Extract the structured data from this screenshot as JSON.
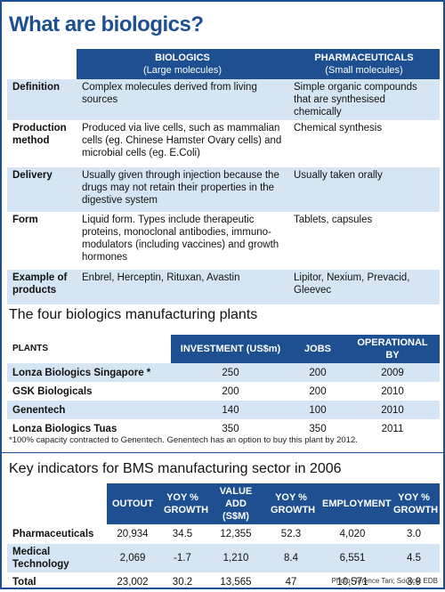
{
  "header": {
    "title": "What are biologics?"
  },
  "comparison": {
    "headers": [
      [
        "BIOLOGICS",
        "(Large molecules)"
      ],
      [
        "PHARMACEUTICALS",
        "(Small molecules)"
      ]
    ],
    "rows": [
      [
        "Definition",
        "Complex molecules derived from living sources",
        "Simple organic compounds that are synthesised chemically"
      ],
      [
        "Production method",
        "Produced via live cells, such as mammalian cells (eg. Chinese Hamster Ovary cells) and microbial cells (eg. E.Coli)",
        "Chemical synthesis"
      ],
      [
        "Delivery",
        "Usually given through injection because the drugs may not retain their properties in the digestive system",
        "Usually taken orally"
      ],
      [
        "Form",
        "Liquid form. Types include  therapeutic proteins, monoclonal antibodies, immuno-modulators (including vaccines) and growth hormones",
        "Tablets, capsules"
      ],
      [
        "Example of products",
        "Enbrel, Herceptin, Rituxan, Avastin",
        "Lipitor, Nexium, Prevacid, Gleevec"
      ]
    ]
  },
  "plants": {
    "title": "The four biologics manufacturing plants",
    "headers": [
      "PLANTS",
      "INVESTMENT (US$m)",
      "JOBS",
      "OPERATIONAL BY"
    ],
    "rows": [
      [
        "Lonza Biologics Singapore *",
        "250",
        "200",
        "2009"
      ],
      [
        "GSK Biologicals",
        "200",
        "200",
        "2010"
      ],
      [
        "Genentech",
        "140",
        "100",
        "2010"
      ],
      [
        "Lonza Biologics Tuas",
        "350",
        "350",
        "2011"
      ]
    ],
    "footnote": "*100% capacity contracted to Genentech. Genentech has an option to buy this plant by 2012."
  },
  "indicators": {
    "title": "Key indicators for BMS manufacturing sector in 2006",
    "headers": [
      "OUTOUT",
      "YOY % GROWTH",
      "VALUE ADD (S$M)",
      "YOY % GROWTH",
      "EMPLOYMENT",
      "YOY % GROWTH"
    ],
    "rows": [
      [
        "Pharmaceuticals",
        "20,934",
        "34.5",
        "12,355",
        "52.3",
        "4,020",
        "3.0"
      ],
      [
        "Medical Technology",
        "2,069",
        "-1.7",
        "1,210",
        "8.4",
        "6,551",
        "4.5"
      ],
      [
        "Total",
        "23,002",
        "30.2",
        "13,565",
        "47",
        "10,571",
        "3.9"
      ]
    ]
  },
  "credit": "Photo: Terence Tan;  Source: EDB"
}
